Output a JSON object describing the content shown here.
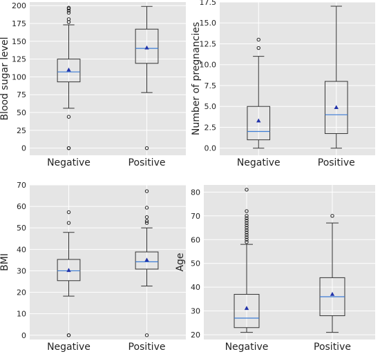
{
  "chart_data": [
    {
      "type": "box",
      "ylabel": "Blood sugar level",
      "ylim": [
        -10,
        205
      ],
      "yticks": [
        0,
        25,
        50,
        75,
        100,
        125,
        150,
        175,
        200
      ],
      "tick_labels": [
        "0",
        "25",
        "50",
        "75",
        "100",
        "125",
        "150",
        "175",
        "200"
      ],
      "categories": [
        "Negative",
        "Positive"
      ],
      "boxes": [
        {
          "q1": 93,
          "median": 107,
          "q3": 125,
          "whisker_low": 56,
          "whisker_high": 173,
          "mean": 110,
          "outliers": [
            0,
            0,
            44,
            177,
            181,
            190,
            193,
            196,
            197
          ]
        },
        {
          "q1": 119,
          "median": 140,
          "q3": 167,
          "whisker_low": 78,
          "whisker_high": 199,
          "mean": 141,
          "outliers": [
            0
          ]
        }
      ],
      "grid": true
    },
    {
      "type": "box",
      "ylabel": "Number of pregnancies",
      "ylim": [
        -0.85,
        17.5
      ],
      "yticks": [
        0,
        2.5,
        5,
        7.5,
        10,
        12.5,
        15,
        17.5
      ],
      "tick_labels": [
        "0.0",
        "2.5",
        "5.0",
        "7.5",
        "10.0",
        "12.5",
        "15.0",
        "17.5"
      ],
      "categories": [
        "Negative",
        "Positive"
      ],
      "boxes": [
        {
          "q1": 1,
          "median": 2,
          "q3": 5,
          "whisker_low": 0,
          "whisker_high": 11,
          "mean": 3.3,
          "outliers": [
            12,
            13
          ]
        },
        {
          "q1": 1.75,
          "median": 4,
          "q3": 8,
          "whisker_low": 0,
          "whisker_high": 17,
          "mean": 4.9,
          "outliers": []
        }
      ],
      "grid": true
    },
    {
      "type": "box",
      "ylabel": "BMI",
      "ylim": [
        -2,
        70
      ],
      "yticks": [
        0,
        10,
        20,
        30,
        40,
        50,
        60,
        70
      ],
      "tick_labels": [
        "0",
        "10",
        "20",
        "30",
        "40",
        "50",
        "60",
        "70"
      ],
      "categories": [
        "Negative",
        "Positive"
      ],
      "boxes": [
        {
          "q1": 25.4,
          "median": 30,
          "q3": 35.3,
          "whisker_low": 18.2,
          "whisker_high": 47.9,
          "mean": 30.3,
          "outliers": [
            0,
            0,
            52.3,
            57.3
          ]
        },
        {
          "q1": 30.8,
          "median": 34.2,
          "q3": 38.8,
          "whisker_low": 22.9,
          "whisker_high": 50,
          "mean": 35.1,
          "outliers": [
            0,
            52.3,
            53.2,
            55,
            59.4,
            67.1
          ]
        }
      ],
      "grid": true
    },
    {
      "type": "box",
      "ylabel": "Age",
      "ylim": [
        18,
        83
      ],
      "yticks": [
        20,
        30,
        40,
        50,
        60,
        70,
        80
      ],
      "tick_labels": [
        "20",
        "30",
        "40",
        "50",
        "60",
        "70",
        "80"
      ],
      "categories": [
        "Negative",
        "Positive"
      ],
      "boxes": [
        {
          "q1": 23,
          "median": 27,
          "q3": 37,
          "whisker_low": 21,
          "whisker_high": 58,
          "mean": 31.2,
          "outliers": [
            59,
            60,
            61,
            62,
            63,
            64,
            65,
            66,
            67,
            68,
            69,
            70,
            72,
            81
          ]
        },
        {
          "q1": 28,
          "median": 36,
          "q3": 44,
          "whisker_low": 21,
          "whisker_high": 67,
          "mean": 37.1,
          "outliers": [
            70
          ]
        }
      ],
      "grid": true
    }
  ]
}
